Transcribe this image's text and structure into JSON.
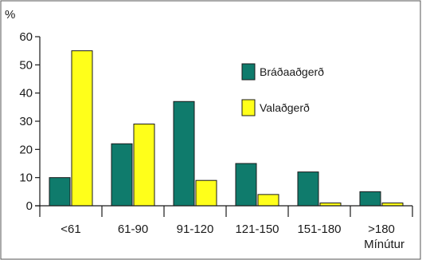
{
  "chart_data": {
    "type": "bar",
    "categories": [
      "<61",
      "61-90",
      "91-120",
      "121-150",
      "151-180",
      ">180"
    ],
    "series": [
      {
        "name": "Bráðaaðgerð",
        "values": [
          10,
          22,
          37,
          15,
          12,
          5
        ],
        "color": "#0f7b6c"
      },
      {
        "name": "Valaðgerð",
        "values": [
          55,
          29,
          9,
          4,
          1,
          1
        ],
        "color": "#ffff1a"
      }
    ],
    "ylabel": "%",
    "xlabel": "Mínútur",
    "ylim": [
      0,
      60
    ],
    "yticks": [
      0,
      10,
      20,
      30,
      40,
      50,
      60
    ],
    "grid": false,
    "legend": "top-right"
  }
}
